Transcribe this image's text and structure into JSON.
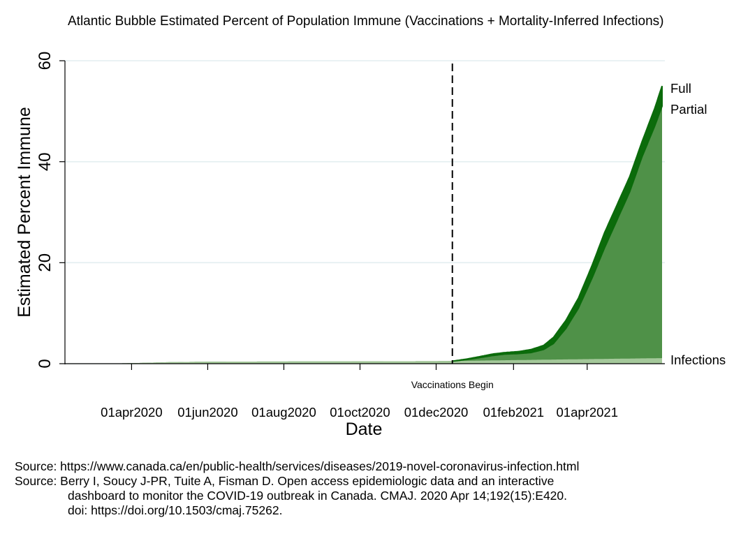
{
  "chart_data": {
    "type": "area",
    "title": "Atlantic Bubble Estimated Percent of Population Immune (Vaccinations + Mortality-Inferred Infections)",
    "xlabel": "Date",
    "ylabel": "Estimated Percent Immune",
    "ylim": [
      0,
      60
    ],
    "yticks": [
      0,
      20,
      40,
      60
    ],
    "xlim": [
      "2020-03-01",
      "2021-05-31"
    ],
    "xticks": [
      "2020-04-01",
      "2020-06-01",
      "2020-08-01",
      "2020-10-01",
      "2020-12-01",
      "2021-02-01",
      "2021-04-01"
    ],
    "xtick_labels": [
      "01apr2020",
      "01jun2020",
      "01aug2020",
      "01oct2020",
      "01dec2020",
      "01feb2021",
      "01apr2021"
    ],
    "grid": true,
    "annotation": {
      "label": "Vaccinations Begin",
      "date": "2020-12-14",
      "style": "dashed vertical line"
    },
    "series": [
      {
        "name": "Infections",
        "color": "#a4c89a",
        "points": [
          [
            "2020-03-01",
            0
          ],
          [
            "2020-04-01",
            0.1
          ],
          [
            "2020-05-01",
            0.3
          ],
          [
            "2020-06-01",
            0.4
          ],
          [
            "2020-12-01",
            0.5
          ],
          [
            "2021-01-01",
            0.6
          ],
          [
            "2021-03-01",
            0.8
          ],
          [
            "2021-05-31",
            1.1
          ]
        ]
      },
      {
        "name": "Partial",
        "color": "#4f9148",
        "points": [
          [
            "2020-12-14",
            0.5
          ],
          [
            "2020-12-25",
            0.8
          ],
          [
            "2021-01-05",
            1.2
          ],
          [
            "2021-01-15",
            1.6
          ],
          [
            "2021-01-25",
            1.9
          ],
          [
            "2021-02-05",
            2.0
          ],
          [
            "2021-02-15",
            2.2
          ],
          [
            "2021-02-25",
            2.8
          ],
          [
            "2021-03-05",
            4.0
          ],
          [
            "2021-03-15",
            7.0
          ],
          [
            "2021-03-25",
            11.0
          ],
          [
            "2021-04-05",
            17.0
          ],
          [
            "2021-04-15",
            23.0
          ],
          [
            "2021-04-25",
            28.5
          ],
          [
            "2021-05-05",
            34.0
          ],
          [
            "2021-05-15",
            41.0
          ],
          [
            "2021-05-25",
            47.0
          ],
          [
            "2021-05-31",
            51.0
          ]
        ]
      },
      {
        "name": "Full",
        "color": "#0b6b0b",
        "points": [
          [
            "2020-12-14",
            0.5
          ],
          [
            "2020-12-25",
            0.9
          ],
          [
            "2021-01-05",
            1.4
          ],
          [
            "2021-01-15",
            1.9
          ],
          [
            "2021-01-25",
            2.2
          ],
          [
            "2021-02-05",
            2.4
          ],
          [
            "2021-02-15",
            2.8
          ],
          [
            "2021-02-25",
            3.6
          ],
          [
            "2021-03-05",
            5.2
          ],
          [
            "2021-03-15",
            8.6
          ],
          [
            "2021-03-25",
            13.0
          ],
          [
            "2021-04-05",
            19.5
          ],
          [
            "2021-04-15",
            26.0
          ],
          [
            "2021-04-25",
            31.5
          ],
          [
            "2021-05-05",
            37.0
          ],
          [
            "2021-05-15",
            44.0
          ],
          [
            "2021-05-25",
            50.5
          ],
          [
            "2021-05-31",
            55.0
          ]
        ]
      }
    ],
    "area_color": "#5a9a52",
    "early_fill_color": "#a4c89a",
    "full_line_color": "#0b6b0b"
  },
  "sources": [
    "Source: https://www.canada.ca/en/public-health/services/diseases/2019-novel-coronavirus-infection.html",
    "Source: Berry I, Soucy J-PR, Tuite A, Fisman D. Open access epidemiologic data and an interactive",
    "dashboard to monitor the COVID-19 outbreak in Canada. CMAJ. 2020 Apr 14;192(15):E420.",
    "doi: https://doi.org/10.1503/cmaj.75262."
  ]
}
